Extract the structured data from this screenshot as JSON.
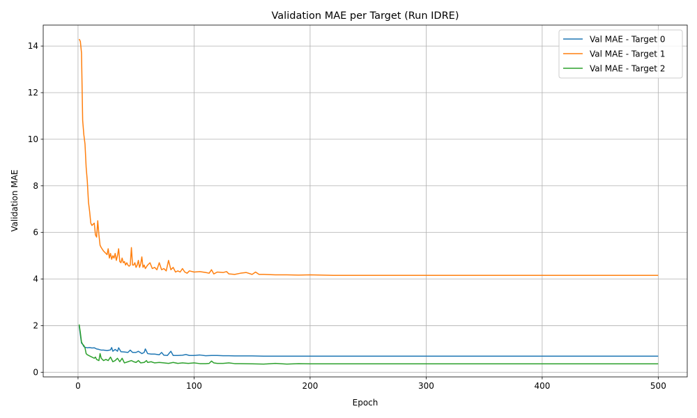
{
  "chart_data": {
    "type": "line",
    "title": "Validation MAE per Target (Run IDRE)",
    "xlabel": "Epoch",
    "ylabel": "Validation MAE",
    "xlim": [
      -30,
      525
    ],
    "ylim": [
      -0.2,
      14.9
    ],
    "xticks": [
      0,
      100,
      200,
      300,
      400,
      500
    ],
    "yticks": [
      0,
      2,
      4,
      6,
      8,
      10,
      12,
      14
    ],
    "grid": true,
    "legend_position": "top-right",
    "series": [
      {
        "name": "Val MAE - Target 0",
        "color": "#1f77b4",
        "points": [
          [
            1,
            2.0
          ],
          [
            2,
            1.6
          ],
          [
            3,
            1.25
          ],
          [
            4,
            1.2
          ],
          [
            5,
            1.1
          ],
          [
            6,
            1.07
          ],
          [
            8,
            1.05
          ],
          [
            10,
            1.06
          ],
          [
            12,
            1.04
          ],
          [
            14,
            1.05
          ],
          [
            16,
            1.0
          ],
          [
            18,
            0.98
          ],
          [
            20,
            0.95
          ],
          [
            22,
            0.95
          ],
          [
            25,
            0.93
          ],
          [
            28,
            0.96
          ],
          [
            29,
            1.06
          ],
          [
            30,
            0.9
          ],
          [
            32,
            0.98
          ],
          [
            34,
            0.9
          ],
          [
            35,
            1.05
          ],
          [
            37,
            0.88
          ],
          [
            40,
            0.87
          ],
          [
            43,
            0.85
          ],
          [
            45,
            0.95
          ],
          [
            47,
            0.85
          ],
          [
            50,
            0.85
          ],
          [
            52,
            0.9
          ],
          [
            55,
            0.8
          ],
          [
            57,
            0.85
          ],
          [
            58,
            1.0
          ],
          [
            60,
            0.8
          ],
          [
            63,
            0.78
          ],
          [
            66,
            0.78
          ],
          [
            70,
            0.75
          ],
          [
            72,
            0.85
          ],
          [
            74,
            0.73
          ],
          [
            77,
            0.72
          ],
          [
            80,
            0.9
          ],
          [
            82,
            0.72
          ],
          [
            86,
            0.72
          ],
          [
            90,
            0.73
          ],
          [
            93,
            0.76
          ],
          [
            96,
            0.72
          ],
          [
            100,
            0.72
          ],
          [
            105,
            0.74
          ],
          [
            110,
            0.71
          ],
          [
            115,
            0.72
          ],
          [
            120,
            0.72
          ],
          [
            125,
            0.71
          ],
          [
            130,
            0.71
          ],
          [
            135,
            0.7
          ],
          [
            140,
            0.7
          ],
          [
            150,
            0.7
          ],
          [
            160,
            0.69
          ],
          [
            170,
            0.69
          ],
          [
            200,
            0.69
          ],
          [
            250,
            0.69
          ],
          [
            300,
            0.69
          ],
          [
            350,
            0.69
          ],
          [
            400,
            0.69
          ],
          [
            450,
            0.69
          ],
          [
            500,
            0.69
          ]
        ]
      },
      {
        "name": "Val MAE - Target 1",
        "color": "#ff7f0e",
        "points": [
          [
            1,
            14.3
          ],
          [
            2,
            14.2
          ],
          [
            3,
            13.7
          ],
          [
            4,
            10.8
          ],
          [
            5,
            10.2
          ],
          [
            6,
            9.8
          ],
          [
            7,
            8.8
          ],
          [
            8,
            8.2
          ],
          [
            9,
            7.3
          ],
          [
            10,
            6.9
          ],
          [
            11,
            6.4
          ],
          [
            12,
            6.3
          ],
          [
            13,
            6.35
          ],
          [
            14,
            6.4
          ],
          [
            15,
            5.9
          ],
          [
            16,
            5.8
          ],
          [
            17,
            6.5
          ],
          [
            18,
            5.9
          ],
          [
            19,
            5.45
          ],
          [
            20,
            5.35
          ],
          [
            22,
            5.2
          ],
          [
            24,
            5.1
          ],
          [
            25,
            5.05
          ],
          [
            26,
            5.3
          ],
          [
            27,
            4.9
          ],
          [
            28,
            5.1
          ],
          [
            29,
            4.85
          ],
          [
            30,
            5.0
          ],
          [
            31,
            4.9
          ],
          [
            32,
            5.1
          ],
          [
            33,
            4.8
          ],
          [
            34,
            5.0
          ],
          [
            35,
            5.3
          ],
          [
            36,
            4.75
          ],
          [
            37,
            4.7
          ],
          [
            38,
            4.9
          ],
          [
            39,
            4.7
          ],
          [
            40,
            4.75
          ],
          [
            41,
            4.6
          ],
          [
            42,
            4.7
          ],
          [
            43,
            4.6
          ],
          [
            44,
            4.55
          ],
          [
            45,
            4.6
          ],
          [
            46,
            5.35
          ],
          [
            47,
            4.6
          ],
          [
            48,
            4.6
          ],
          [
            49,
            4.7
          ],
          [
            50,
            4.5
          ],
          [
            51,
            4.6
          ],
          [
            52,
            4.8
          ],
          [
            53,
            4.5
          ],
          [
            54,
            4.65
          ],
          [
            55,
            4.95
          ],
          [
            56,
            4.5
          ],
          [
            57,
            4.6
          ],
          [
            58,
            4.45
          ],
          [
            60,
            4.6
          ],
          [
            62,
            4.7
          ],
          [
            64,
            4.45
          ],
          [
            66,
            4.5
          ],
          [
            68,
            4.4
          ],
          [
            70,
            4.7
          ],
          [
            72,
            4.4
          ],
          [
            74,
            4.45
          ],
          [
            76,
            4.35
          ],
          [
            78,
            4.8
          ],
          [
            80,
            4.4
          ],
          [
            82,
            4.5
          ],
          [
            84,
            4.3
          ],
          [
            86,
            4.35
          ],
          [
            88,
            4.3
          ],
          [
            90,
            4.45
          ],
          [
            92,
            4.3
          ],
          [
            94,
            4.25
          ],
          [
            96,
            4.35
          ],
          [
            100,
            4.3
          ],
          [
            105,
            4.32
          ],
          [
            110,
            4.28
          ],
          [
            113,
            4.25
          ],
          [
            115,
            4.4
          ],
          [
            117,
            4.22
          ],
          [
            120,
            4.3
          ],
          [
            125,
            4.28
          ],
          [
            128,
            4.32
          ],
          [
            130,
            4.22
          ],
          [
            135,
            4.2
          ],
          [
            140,
            4.25
          ],
          [
            145,
            4.28
          ],
          [
            150,
            4.2
          ],
          [
            153,
            4.3
          ],
          [
            156,
            4.2
          ],
          [
            160,
            4.2
          ],
          [
            170,
            4.18
          ],
          [
            180,
            4.18
          ],
          [
            190,
            4.17
          ],
          [
            200,
            4.18
          ],
          [
            220,
            4.16
          ],
          [
            250,
            4.16
          ],
          [
            300,
            4.16
          ],
          [
            350,
            4.16
          ],
          [
            400,
            4.16
          ],
          [
            450,
            4.16
          ],
          [
            500,
            4.16
          ]
        ]
      },
      {
        "name": "Val MAE - Target 2",
        "color": "#2ca02c",
        "points": [
          [
            1,
            2.05
          ],
          [
            2,
            1.7
          ],
          [
            3,
            1.3
          ],
          [
            4,
            1.2
          ],
          [
            5,
            1.15
          ],
          [
            6,
            1.05
          ],
          [
            7,
            0.8
          ],
          [
            8,
            0.75
          ],
          [
            10,
            0.7
          ],
          [
            12,
            0.65
          ],
          [
            14,
            0.6
          ],
          [
            15,
            0.65
          ],
          [
            16,
            0.55
          ],
          [
            18,
            0.5
          ],
          [
            19,
            0.8
          ],
          [
            20,
            0.6
          ],
          [
            22,
            0.5
          ],
          [
            24,
            0.55
          ],
          [
            26,
            0.5
          ],
          [
            28,
            0.65
          ],
          [
            30,
            0.45
          ],
          [
            32,
            0.5
          ],
          [
            34,
            0.6
          ],
          [
            36,
            0.45
          ],
          [
            38,
            0.6
          ],
          [
            40,
            0.4
          ],
          [
            43,
            0.45
          ],
          [
            46,
            0.5
          ],
          [
            48,
            0.45
          ],
          [
            50,
            0.42
          ],
          [
            52,
            0.5
          ],
          [
            54,
            0.4
          ],
          [
            57,
            0.42
          ],
          [
            59,
            0.5
          ],
          [
            60,
            0.42
          ],
          [
            63,
            0.45
          ],
          [
            66,
            0.4
          ],
          [
            70,
            0.42
          ],
          [
            74,
            0.4
          ],
          [
            78,
            0.38
          ],
          [
            82,
            0.42
          ],
          [
            86,
            0.38
          ],
          [
            90,
            0.4
          ],
          [
            95,
            0.38
          ],
          [
            100,
            0.4
          ],
          [
            105,
            0.37
          ],
          [
            110,
            0.37
          ],
          [
            113,
            0.38
          ],
          [
            115,
            0.48
          ],
          [
            117,
            0.4
          ],
          [
            120,
            0.38
          ],
          [
            125,
            0.38
          ],
          [
            130,
            0.4
          ],
          [
            135,
            0.37
          ],
          [
            140,
            0.37
          ],
          [
            150,
            0.36
          ],
          [
            160,
            0.35
          ],
          [
            170,
            0.38
          ],
          [
            180,
            0.35
          ],
          [
            190,
            0.37
          ],
          [
            200,
            0.36
          ],
          [
            210,
            0.36
          ],
          [
            250,
            0.36
          ],
          [
            300,
            0.36
          ],
          [
            350,
            0.36
          ],
          [
            400,
            0.36
          ],
          [
            450,
            0.36
          ],
          [
            500,
            0.36
          ]
        ]
      }
    ]
  }
}
